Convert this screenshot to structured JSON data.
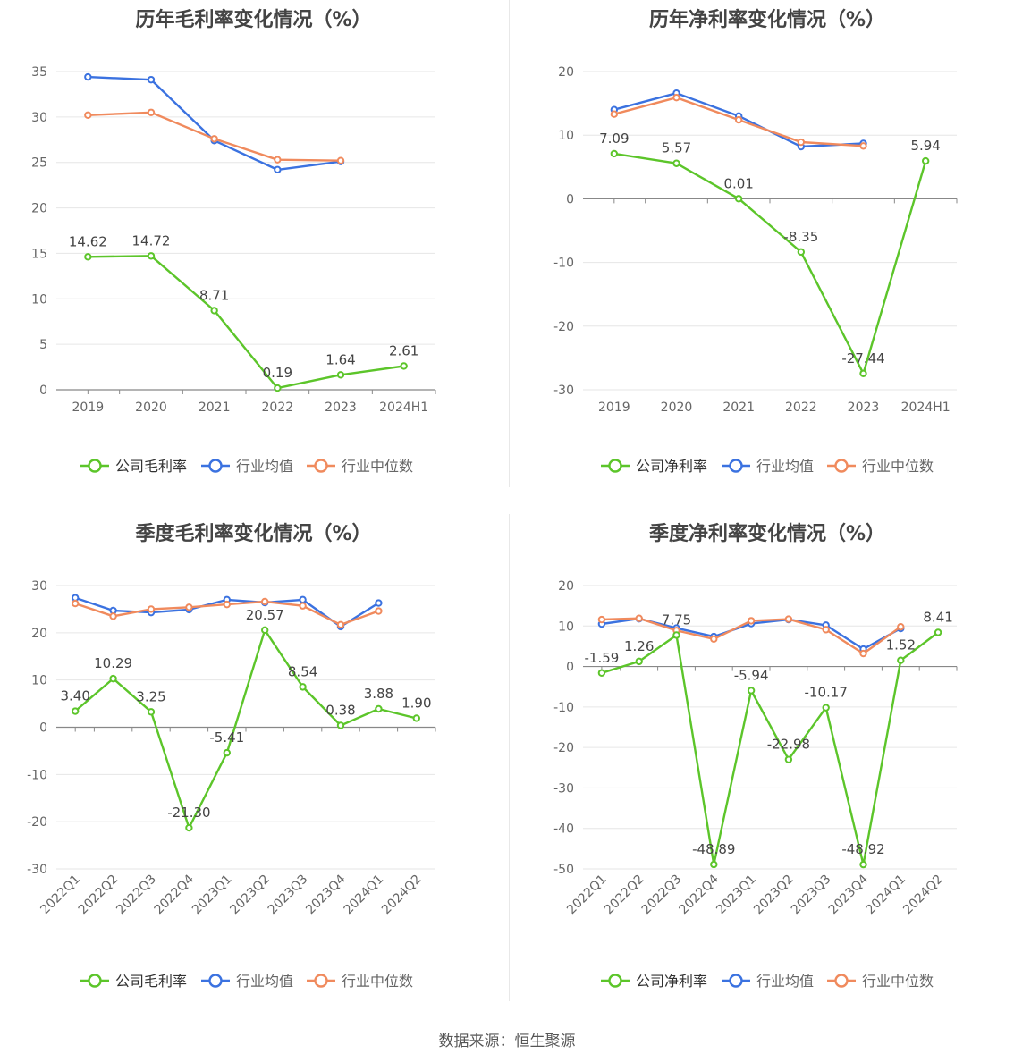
{
  "source": "数据来源：恒生聚源",
  "colors": {
    "company": "#5cc52a",
    "avg": "#3b72e0",
    "median": "#f08a5d",
    "grid": "#e6e6e6",
    "axis": "#888888",
    "label": "#666666",
    "value": "#444444"
  },
  "chart_data": [
    {
      "type": "line",
      "title": "历年毛利率变化情况（%）",
      "categories": [
        "2019",
        "2020",
        "2021",
        "2022",
        "2023",
        "2024H1"
      ],
      "yticks": [
        0,
        5,
        10,
        15,
        20,
        25,
        30,
        35
      ],
      "ylim": [
        0,
        35
      ],
      "series": [
        {
          "name": "公司毛利率",
          "values": [
            14.62,
            14.72,
            8.71,
            0.19,
            1.64,
            2.61
          ],
          "labels": [
            "14.62",
            "14.72",
            "8.71",
            "0.19",
            "1.64",
            "2.61"
          ]
        },
        {
          "name": "行业均值",
          "values": [
            34.4,
            34.1,
            27.4,
            24.2,
            25.1,
            null
          ]
        },
        {
          "name": "行业中位数",
          "values": [
            30.2,
            30.5,
            27.6,
            25.3,
            25.2,
            null
          ]
        }
      ]
    },
    {
      "type": "line",
      "title": "历年净利率变化情况（%）",
      "categories": [
        "2019",
        "2020",
        "2021",
        "2022",
        "2023",
        "2024H1"
      ],
      "yticks": [
        -30,
        -20,
        -10,
        0,
        10,
        20
      ],
      "ylim": [
        -30,
        20
      ],
      "series": [
        {
          "name": "公司净利率",
          "values": [
            7.09,
            5.57,
            0.01,
            -8.35,
            -27.44,
            5.94
          ],
          "labels": [
            "7.09",
            "5.57",
            "0.01",
            "-8.35",
            "-27.44",
            "5.94"
          ]
        },
        {
          "name": "行业均值",
          "values": [
            14.0,
            16.6,
            13.0,
            8.2,
            8.7,
            null
          ]
        },
        {
          "name": "行业中位数",
          "values": [
            13.3,
            15.9,
            12.4,
            8.9,
            8.3,
            null
          ]
        }
      ]
    },
    {
      "type": "line",
      "title": "季度毛利率变化情况（%）",
      "categories": [
        "2022Q1",
        "2022Q2",
        "2022Q3",
        "2022Q4",
        "2023Q1",
        "2023Q2",
        "2023Q3",
        "2023Q4",
        "2024Q1",
        "2024Q2"
      ],
      "yticks": [
        -30,
        -20,
        -10,
        0,
        10,
        20,
        30
      ],
      "ylim": [
        -30,
        30
      ],
      "series": [
        {
          "name": "公司毛利率",
          "values": [
            3.4,
            10.29,
            3.25,
            -21.3,
            -5.41,
            20.57,
            8.54,
            0.38,
            3.88,
            1.9
          ],
          "labels": [
            "3.40",
            "10.29",
            "3.25",
            "-21.30",
            "-5.41",
            "20.57",
            "8.54",
            "0.38",
            "3.88",
            "1.90"
          ]
        },
        {
          "name": "行业均值",
          "values": [
            27.4,
            24.7,
            24.3,
            24.9,
            27.0,
            26.4,
            27.0,
            21.3,
            26.3,
            null
          ]
        },
        {
          "name": "行业中位数",
          "values": [
            26.2,
            23.5,
            25.0,
            25.4,
            26.0,
            26.6,
            25.7,
            21.7,
            24.6,
            null
          ]
        }
      ]
    },
    {
      "type": "line",
      "title": "季度净利率变化情况（%）",
      "categories": [
        "2022Q1",
        "2022Q2",
        "2022Q3",
        "2022Q4",
        "2023Q1",
        "2023Q2",
        "2023Q3",
        "2023Q4",
        "2024Q1",
        "2024Q2"
      ],
      "yticks": [
        -50,
        -40,
        -30,
        -20,
        -10,
        0,
        10,
        20
      ],
      "ylim": [
        -50,
        20
      ],
      "series": [
        {
          "name": "公司净利率",
          "values": [
            -1.59,
            1.26,
            7.75,
            -48.89,
            -5.94,
            -22.98,
            -10.17,
            -48.92,
            1.52,
            8.41
          ],
          "labels": [
            "-1.59",
            "1.26",
            "7.75",
            "-48.89",
            "-5.94",
            "-22.98",
            "-10.17",
            "-48.92",
            "1.52",
            "8.41"
          ]
        },
        {
          "name": "行业均值",
          "values": [
            10.5,
            11.8,
            9.5,
            7.4,
            10.6,
            11.6,
            10.2,
            4.3,
            9.4,
            null
          ]
        },
        {
          "name": "行业中位数",
          "values": [
            11.6,
            11.9,
            8.9,
            6.8,
            11.3,
            11.7,
            9.1,
            3.2,
            9.8,
            null
          ]
        }
      ]
    }
  ]
}
